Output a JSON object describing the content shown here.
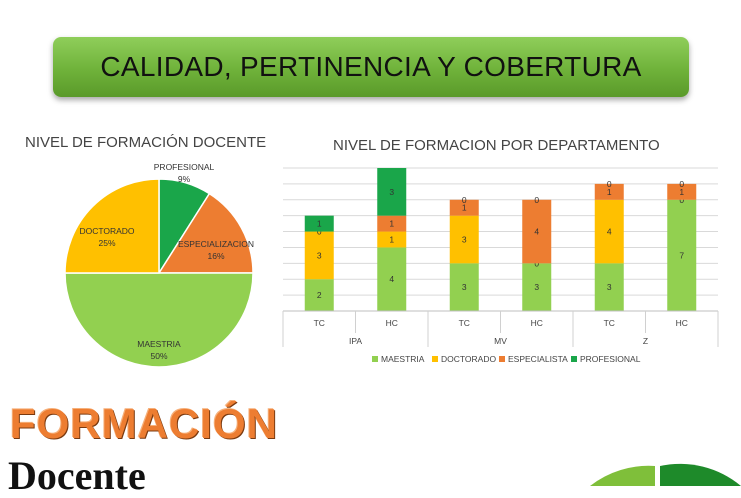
{
  "banner": {
    "title": "CALIDAD, PERTINENCIA Y COBERTURA"
  },
  "chart_data": [
    {
      "type": "pie",
      "title": "NIVEL DE FORMACIÓN DOCENTE",
      "slices": [
        {
          "label": "PROFESIONAL",
          "value": 9,
          "value_label": "9%",
          "color": "#1aa64a"
        },
        {
          "label": "ESPECIALIZACION",
          "value": 16,
          "value_label": "16%",
          "color": "#ed7d31"
        },
        {
          "label": "MAESTRIA",
          "value": 50,
          "value_label": "50%",
          "color": "#92d050"
        },
        {
          "label": "DOCTORADO",
          "value": 25,
          "value_label": "25%",
          "color": "#ffc000"
        }
      ]
    },
    {
      "type": "bar",
      "stacked": true,
      "title": "NIVEL DE FORMACION POR DEPARTAMENTO",
      "categories": [
        "TC",
        "HC",
        "TC",
        "HC",
        "TC",
        "HC"
      ],
      "groups": [
        {
          "label": "IPA",
          "span": [
            0,
            1
          ]
        },
        {
          "label": "MV",
          "span": [
            2,
            3
          ]
        },
        {
          "label": "Z",
          "span": [
            4,
            5
          ]
        }
      ],
      "ylim": [
        0,
        9
      ],
      "grid": true,
      "legend_position": "bottom",
      "series": [
        {
          "name": "MAESTRIA",
          "color": "#92d050",
          "values": [
            2,
            4,
            3,
            3,
            3,
            7
          ]
        },
        {
          "name": "DOCTORADO",
          "color": "#ffc000",
          "values": [
            3,
            1,
            3,
            0,
            4,
            0
          ]
        },
        {
          "name": "ESPECIALISTA",
          "color": "#ed7d31",
          "values": [
            0,
            1,
            1,
            4,
            1,
            1
          ]
        },
        {
          "name": "PROFESIONAL",
          "color": "#1aa64a",
          "values": [
            1,
            3,
            0,
            0,
            0,
            0
          ]
        }
      ]
    }
  ],
  "bottom": {
    "word1": "FORMACIÓN",
    "word2": "Docente"
  }
}
